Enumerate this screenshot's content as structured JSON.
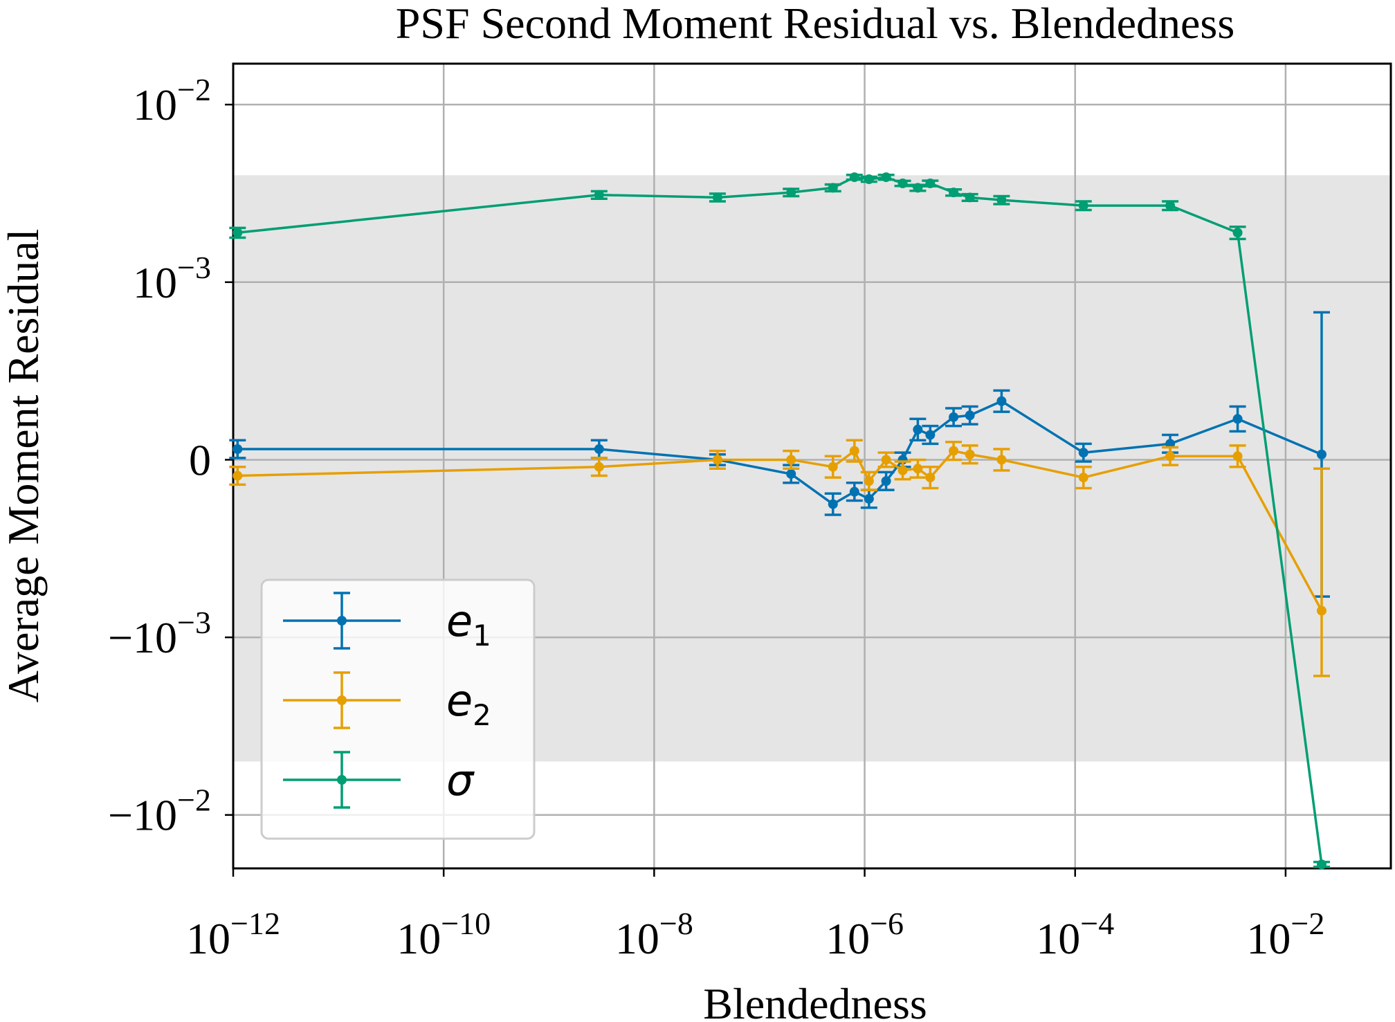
{
  "chart_data": {
    "type": "line",
    "title": "PSF Second Moment Residual vs. Blendedness",
    "xlabel": "Blendedness",
    "ylabel": "Average Moment Residual",
    "xscale": "log",
    "yscale": "symlog",
    "linthresh": 0.001,
    "xlim": [
      1e-12,
      0.1
    ],
    "ylim": [
      -0.02,
      0.017
    ],
    "grid": true,
    "shaded_band": [
      -0.005,
      0.004
    ],
    "xticks": [
      {
        "value": 1e-12,
        "base": "10",
        "exp": "−12"
      },
      {
        "value": 1e-10,
        "base": "10",
        "exp": "−10"
      },
      {
        "value": 1e-08,
        "base": "10",
        "exp": "−8"
      },
      {
        "value": 1e-06,
        "base": "10",
        "exp": "−6"
      },
      {
        "value": 0.0001,
        "base": "10",
        "exp": "−4"
      },
      {
        "value": 0.01,
        "base": "10",
        "exp": "−2"
      }
    ],
    "yticks": [
      {
        "value": 0.01,
        "base": "10",
        "exp": "−2"
      },
      {
        "value": 0.001,
        "base": "10",
        "exp": "−3"
      },
      {
        "value": 0,
        "base": "0",
        "exp": ""
      },
      {
        "value": -0.001,
        "base": "−10",
        "exp": "−3"
      },
      {
        "value": -0.01,
        "base": "−10",
        "exp": "−2"
      }
    ],
    "legend": {
      "position": "lower-left",
      "entries": [
        {
          "base": "e",
          "sub": "1"
        },
        {
          "base": "e",
          "sub": "2"
        },
        {
          "base": "σ",
          "sub": ""
        }
      ]
    },
    "series": [
      {
        "color": "#0072b2",
        "points": [
          {
            "x": 1.1e-12,
            "y": 6e-05,
            "err": 5e-05
          },
          {
            "x": 3e-09,
            "y": 6e-05,
            "err": 5e-05
          },
          {
            "x": 4e-08,
            "y": 0.0,
            "err": 3e-05
          },
          {
            "x": 2e-07,
            "y": -8e-05,
            "err": 5e-05
          },
          {
            "x": 5e-07,
            "y": -0.00025,
            "err": 6e-05
          },
          {
            "x": 8e-07,
            "y": -0.00018,
            "err": 5e-05
          },
          {
            "x": 1.1e-06,
            "y": -0.00022,
            "err": 5e-05
          },
          {
            "x": 1.6e-06,
            "y": -0.00012,
            "err": 5e-05
          },
          {
            "x": 2.3e-06,
            "y": 0.0,
            "err": 4e-05
          },
          {
            "x": 3.2e-06,
            "y": 0.00017,
            "err": 6e-05
          },
          {
            "x": 4.2e-06,
            "y": 0.00014,
            "err": 5e-05
          },
          {
            "x": 7e-06,
            "y": 0.00024,
            "err": 5e-05
          },
          {
            "x": 1e-05,
            "y": 0.00025,
            "err": 5e-05
          },
          {
            "x": 2e-05,
            "y": 0.00033,
            "err": 6e-05
          },
          {
            "x": 0.00012,
            "y": 4e-05,
            "err": 5e-05
          },
          {
            "x": 0.0008,
            "y": 9e-05,
            "err": 5e-05
          },
          {
            "x": 0.0035,
            "y": 0.00023,
            "err": 7e-05
          },
          {
            "x": 0.022,
            "y": 3e-05,
            "err": 0.0008
          }
        ]
      },
      {
        "color": "#e69f00",
        "points": [
          {
            "x": 1.1e-12,
            "y": -9e-05,
            "err": 5e-05
          },
          {
            "x": 3e-09,
            "y": -4e-05,
            "err": 5e-05
          },
          {
            "x": 4e-08,
            "y": 0.0,
            "err": 5e-05
          },
          {
            "x": 2e-07,
            "y": 0.0,
            "err": 5e-05
          },
          {
            "x": 5e-07,
            "y": -4e-05,
            "err": 6e-05
          },
          {
            "x": 8e-07,
            "y": 5e-05,
            "err": 6e-05
          },
          {
            "x": 1.1e-06,
            "y": -0.00012,
            "err": 5e-05
          },
          {
            "x": 1.6e-06,
            "y": 0.0,
            "err": 4e-05
          },
          {
            "x": 2.3e-06,
            "y": -6e-05,
            "err": 5e-05
          },
          {
            "x": 3.2e-06,
            "y": -5e-05,
            "err": 5e-05
          },
          {
            "x": 4.2e-06,
            "y": -0.0001,
            "err": 6e-05
          },
          {
            "x": 7e-06,
            "y": 5e-05,
            "err": 5e-05
          },
          {
            "x": 1e-05,
            "y": 3e-05,
            "err": 5e-05
          },
          {
            "x": 2e-05,
            "y": 0.0,
            "err": 6e-05
          },
          {
            "x": 0.00012,
            "y": -0.0001,
            "err": 6e-05
          },
          {
            "x": 0.0008,
            "y": 2e-05,
            "err": 5e-05
          },
          {
            "x": 0.0035,
            "y": 2e-05,
            "err": 6e-05
          },
          {
            "x": 0.022,
            "y": -0.00085,
            "err": 0.0008
          }
        ]
      },
      {
        "color": "#009e73",
        "points": [
          {
            "x": 1.1e-12,
            "y": 0.0019,
            "err": 0.00012
          },
          {
            "x": 3e-09,
            "y": 0.0031,
            "err": 0.00015
          },
          {
            "x": 4e-08,
            "y": 0.003,
            "err": 0.00015
          },
          {
            "x": 2e-07,
            "y": 0.0032,
            "err": 0.00015
          },
          {
            "x": 5e-07,
            "y": 0.0034,
            "err": 0.00015
          },
          {
            "x": 8e-07,
            "y": 0.0039,
            "err": 0.00012
          },
          {
            "x": 1.1e-06,
            "y": 0.0038,
            "err": 0.00012
          },
          {
            "x": 1.6e-06,
            "y": 0.0039,
            "err": 0.00012
          },
          {
            "x": 2.3e-06,
            "y": 0.0036,
            "err": 0.00012
          },
          {
            "x": 3.2e-06,
            "y": 0.0034,
            "err": 0.00013
          },
          {
            "x": 4.2e-06,
            "y": 0.0036,
            "err": 0.00013
          },
          {
            "x": 7e-06,
            "y": 0.0032,
            "err": 0.00013
          },
          {
            "x": 1e-05,
            "y": 0.003,
            "err": 0.00013
          },
          {
            "x": 2e-05,
            "y": 0.0029,
            "err": 0.00015
          },
          {
            "x": 0.00012,
            "y": 0.0027,
            "err": 0.00015
          },
          {
            "x": 0.0008,
            "y": 0.0027,
            "err": 0.00015
          },
          {
            "x": 0.0035,
            "y": 0.0019,
            "err": 0.00015
          },
          {
            "x": 0.022,
            "y": -0.019,
            "err": 0.0006
          }
        ]
      }
    ]
  }
}
